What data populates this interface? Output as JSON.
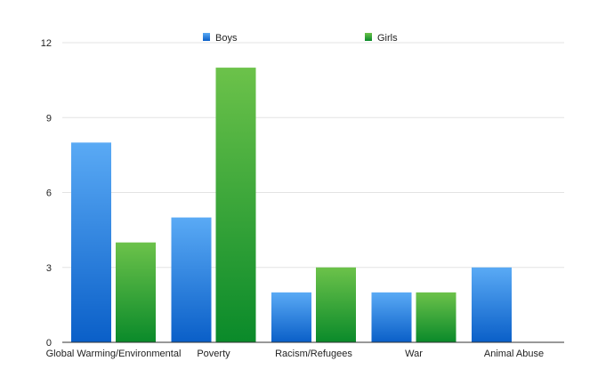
{
  "chart_data": {
    "type": "bar",
    "title": "",
    "xlabel": "",
    "ylabel": "",
    "categories": [
      "Global Warming/Environmental",
      "Poverty",
      "Racism/Refugees",
      "War",
      "Animal Abuse"
    ],
    "series": [
      {
        "name": "Boys",
        "values": [
          8,
          5,
          2,
          2,
          3
        ],
        "color_top": "#5aaaf5",
        "color_bottom": "#0a5fc8"
      },
      {
        "name": "Girls",
        "values": [
          4,
          11,
          3,
          2,
          0
        ],
        "color_top": "#6cc24a",
        "color_bottom": "#0a8a2a"
      }
    ],
    "ylim": [
      0,
      12
    ],
    "yticks": [
      0,
      3,
      6,
      9,
      12
    ],
    "grid": true,
    "legend_position": "top"
  }
}
